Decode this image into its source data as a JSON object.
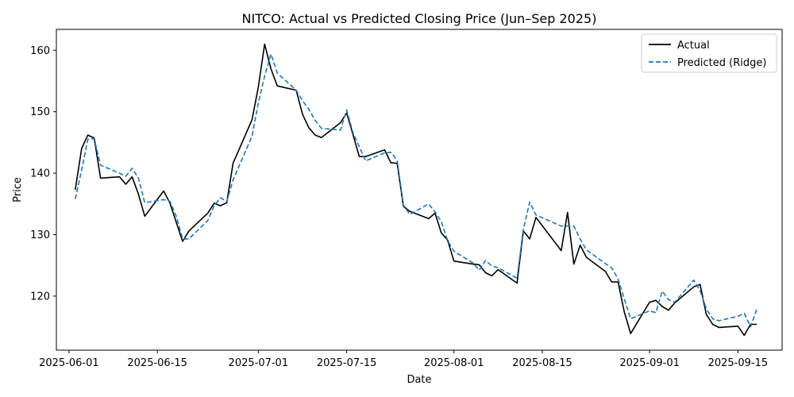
{
  "chart_data": {
    "type": "line",
    "title": "NITCO: Actual vs Predicted Closing Price (Jun–Sep 2025)",
    "xlabel": "Date",
    "ylabel": "Price",
    "x_tick_labels": [
      "2025-06-01",
      "2025-06-15",
      "2025-07-01",
      "2025-07-15",
      "2025-08-01",
      "2025-08-15",
      "2025-09-01",
      "2025-09-15"
    ],
    "y_tick_labels": [
      "120",
      "130",
      "140",
      "150",
      "160"
    ],
    "y_ticks": [
      120,
      130,
      140,
      150,
      160
    ],
    "xlim": [
      "2025-05-30",
      "2025-09-22"
    ],
    "ylim": [
      111.2,
      163.4
    ],
    "grid": false,
    "legend_position": "top-right",
    "series": [
      {
        "name": "Actual",
        "color": "#000000",
        "linestyle": "solid",
        "x": [
          "2025-06-02",
          "2025-06-03",
          "2025-06-04",
          "2025-06-05",
          "2025-06-06",
          "2025-06-09",
          "2025-06-10",
          "2025-06-11",
          "2025-06-12",
          "2025-06-13",
          "2025-06-16",
          "2025-06-17",
          "2025-06-18",
          "2025-06-19",
          "2025-06-20",
          "2025-06-23",
          "2025-06-24",
          "2025-06-25",
          "2025-06-26",
          "2025-06-27",
          "2025-06-30",
          "2025-07-01",
          "2025-07-02",
          "2025-07-03",
          "2025-07-04",
          "2025-07-07",
          "2025-07-08",
          "2025-07-09",
          "2025-07-10",
          "2025-07-11",
          "2025-07-14",
          "2025-07-15",
          "2025-07-16",
          "2025-07-17",
          "2025-07-18",
          "2025-07-21",
          "2025-07-22",
          "2025-07-23",
          "2025-07-24",
          "2025-07-25",
          "2025-07-28",
          "2025-07-29",
          "2025-07-30",
          "2025-07-31",
          "2025-08-01",
          "2025-08-04",
          "2025-08-05",
          "2025-08-06",
          "2025-08-07",
          "2025-08-08",
          "2025-08-11",
          "2025-08-12",
          "2025-08-13",
          "2025-08-14",
          "2025-08-18",
          "2025-08-19",
          "2025-08-20",
          "2025-08-21",
          "2025-08-22",
          "2025-08-25",
          "2025-08-26",
          "2025-08-27",
          "2025-08-28",
          "2025-08-29",
          "2025-09-01",
          "2025-09-02",
          "2025-09-03",
          "2025-09-04",
          "2025-09-05",
          "2025-09-08",
          "2025-09-09",
          "2025-09-10",
          "2025-09-11",
          "2025-09-12",
          "2025-09-15",
          "2025-09-16",
          "2025-09-17",
          "2025-09-18"
        ],
        "y": [
          137.3,
          144.0,
          146.2,
          145.7,
          139.2,
          139.4,
          138.2,
          139.4,
          136.6,
          133.0,
          137.1,
          135.1,
          132.0,
          128.9,
          130.6,
          133.5,
          135.1,
          134.7,
          135.2,
          141.6,
          148.7,
          154.0,
          161.0,
          157.0,
          154.2,
          153.5,
          149.6,
          147.4,
          146.2,
          145.8,
          148.2,
          149.8,
          146.3,
          142.7,
          142.7,
          143.8,
          141.7,
          141.6,
          134.6,
          133.8,
          132.6,
          133.5,
          130.3,
          129.1,
          125.7,
          125.2,
          125.1,
          123.8,
          123.3,
          124.3,
          122.1,
          130.6,
          129.3,
          132.8,
          127.4,
          133.6,
          125.2,
          128.3,
          126.3,
          124.0,
          122.3,
          122.3,
          117.4,
          113.9,
          119.0,
          119.3,
          118.3,
          117.7,
          118.9,
          121.5,
          121.9,
          117.0,
          115.4,
          114.9,
          115.1,
          113.6,
          115.4,
          115.4
        ]
      },
      {
        "name": "Predicted (Ridge)",
        "color": "#1f77b4",
        "linestyle": "dashed",
        "x": [
          "2025-06-02",
          "2025-06-03",
          "2025-06-04",
          "2025-06-05",
          "2025-06-06",
          "2025-06-09",
          "2025-06-10",
          "2025-06-11",
          "2025-06-12",
          "2025-06-13",
          "2025-06-16",
          "2025-06-17",
          "2025-06-18",
          "2025-06-19",
          "2025-06-20",
          "2025-06-23",
          "2025-06-24",
          "2025-06-25",
          "2025-06-26",
          "2025-06-27",
          "2025-06-30",
          "2025-07-01",
          "2025-07-02",
          "2025-07-03",
          "2025-07-04",
          "2025-07-07",
          "2025-07-08",
          "2025-07-09",
          "2025-07-10",
          "2025-07-11",
          "2025-07-14",
          "2025-07-15",
          "2025-07-16",
          "2025-07-17",
          "2025-07-18",
          "2025-07-21",
          "2025-07-22",
          "2025-07-23",
          "2025-07-24",
          "2025-07-25",
          "2025-07-28",
          "2025-07-29",
          "2025-07-30",
          "2025-07-31",
          "2025-08-01",
          "2025-08-04",
          "2025-08-05",
          "2025-08-06",
          "2025-08-07",
          "2025-08-08",
          "2025-08-11",
          "2025-08-12",
          "2025-08-13",
          "2025-08-14",
          "2025-08-18",
          "2025-08-19",
          "2025-08-20",
          "2025-08-21",
          "2025-08-22",
          "2025-08-25",
          "2025-08-26",
          "2025-08-27",
          "2025-08-28",
          "2025-08-29",
          "2025-09-01",
          "2025-09-02",
          "2025-09-03",
          "2025-09-04",
          "2025-09-05",
          "2025-09-08",
          "2025-09-09",
          "2025-09-10",
          "2025-09-11",
          "2025-09-12",
          "2025-09-15",
          "2025-09-16",
          "2025-09-17",
          "2025-09-18"
        ],
        "y": [
          135.8,
          140.5,
          145.5,
          145.6,
          141.3,
          140.0,
          139.5,
          140.8,
          139.2,
          135.2,
          135.7,
          135.4,
          133.0,
          129.3,
          129.3,
          132.3,
          134.7,
          136.0,
          135.4,
          138.9,
          146.0,
          151.4,
          155.8,
          159.4,
          156.3,
          153.5,
          151.8,
          150.4,
          148.6,
          147.3,
          147.0,
          150.3,
          146.6,
          144.3,
          142.0,
          143.3,
          143.4,
          142.1,
          134.8,
          133.3,
          135.0,
          133.7,
          132.1,
          129.0,
          127.3,
          125.4,
          124.2,
          125.8,
          124.9,
          124.6,
          122.9,
          130.8,
          135.3,
          133.2,
          131.4,
          131.4,
          131.4,
          129.3,
          127.5,
          125.3,
          124.6,
          122.8,
          119.5,
          116.3,
          117.6,
          117.3,
          120.8,
          119.4,
          119.0,
          122.6,
          120.9,
          117.9,
          116.3,
          116.0,
          116.7,
          117.2,
          115.0,
          117.9
        ]
      }
    ]
  }
}
